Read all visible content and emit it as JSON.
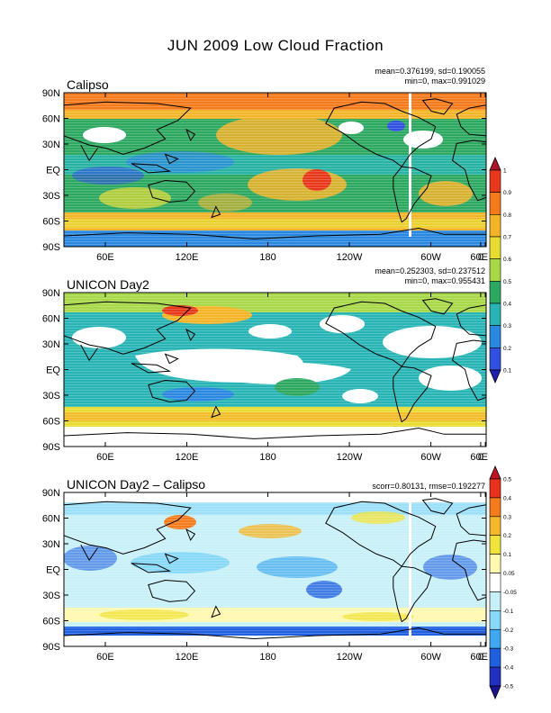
{
  "figure": {
    "title": "JUN 2009 Low Cloud Fraction"
  },
  "axes": {
    "lat_labels": [
      "90N",
      "60N",
      "30N",
      "EQ",
      "30S",
      "60S",
      "90S"
    ],
    "lon_labels": [
      "60E",
      "120E",
      "180",
      "120W",
      "60W",
      "0",
      "60E"
    ]
  },
  "panels": [
    {
      "id": "calipso",
      "title": "Calipso",
      "stats_line1": "mean=0.376199, sd=0.190055",
      "stats_line2": "min=0, max=0.991029"
    },
    {
      "id": "unicon",
      "title": "UNICON Day2",
      "stats_line1": "mean=0.252303, sd=0.237512",
      "stats_line2": "min=0, max=0.955431"
    },
    {
      "id": "diff",
      "title": "UNICON Day2 – Calipso",
      "stats_line1": "scorr=0.80131, rmse=0.192277",
      "stats_line2": ""
    }
  ],
  "colorbars": {
    "fraction": {
      "labels": [
        "1",
        "0.9",
        "0.8",
        "0.7",
        "0.6",
        "0.5",
        "0.4",
        "0.3",
        "0.2",
        "0.1"
      ],
      "colors": [
        "#b0142a",
        "#e8381c",
        "#f47a1c",
        "#f4b428",
        "#e8dc32",
        "#a8d848",
        "#2ca860",
        "#28b4b4",
        "#2a88e0",
        "#3050e0",
        "#2020b0"
      ]
    },
    "difference": {
      "labels": [
        "0.5",
        "0.4",
        "0.3",
        "0.2",
        "0.1",
        "0.05",
        "-0.05",
        "-0.1",
        "-0.2",
        "-0.3",
        "-0.4",
        "-0.5"
      ],
      "colors": [
        "#c01424",
        "#e8321c",
        "#f47c1c",
        "#f4b82c",
        "#f0e43c",
        "#fff8b0",
        "#ffffff",
        "#c8f0f8",
        "#88d8f8",
        "#40a8f0",
        "#2060e0",
        "#2030c0",
        "#1a1490"
      ]
    }
  }
}
